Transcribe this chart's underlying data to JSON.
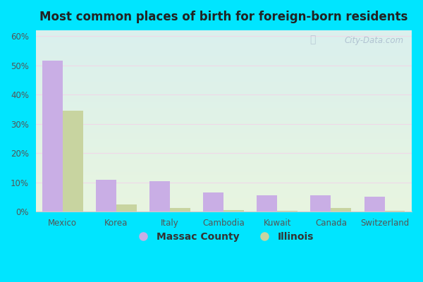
{
  "title": "Most common places of birth for foreign-born residents",
  "categories": [
    "Mexico",
    "Korea",
    "Italy",
    "Cambodia",
    "Kuwait",
    "Canada",
    "Switzerland"
  ],
  "massac_county": [
    51.5,
    11.0,
    10.5,
    6.5,
    5.5,
    5.5,
    5.0
  ],
  "illinois": [
    34.5,
    2.5,
    1.2,
    0.5,
    0.3,
    1.2,
    0.3
  ],
  "massac_color": "#c9aee5",
  "illinois_color": "#c8d4a0",
  "ylim": [
    0,
    62
  ],
  "yticks": [
    0,
    10,
    20,
    30,
    40,
    50,
    60
  ],
  "ytick_labels": [
    "0%",
    "10%",
    "20%",
    "30%",
    "40%",
    "50%",
    "60%"
  ],
  "legend_labels": [
    "Massac County",
    "Illinois"
  ],
  "watermark": "City-Data.com",
  "outer_bg": "#00e5ff",
  "bar_width": 0.38,
  "bg_top": "#daf0ee",
  "bg_bottom": "#e8f5e0"
}
